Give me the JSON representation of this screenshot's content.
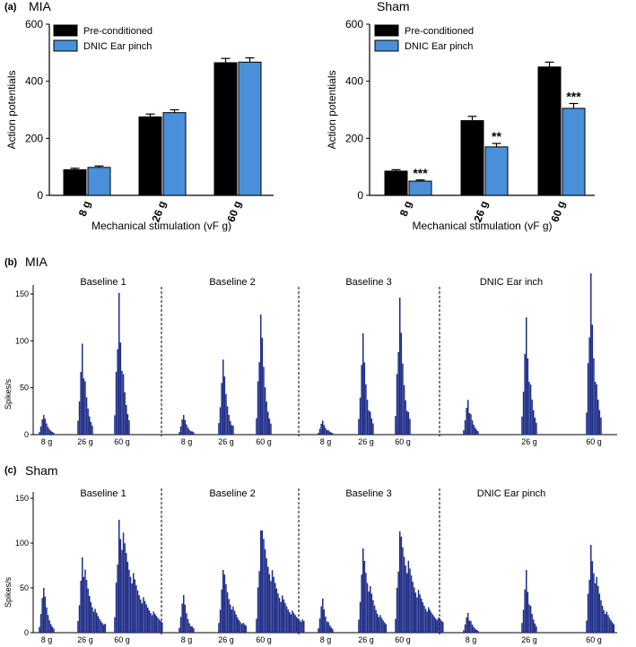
{
  "panel_labels": [
    "(a)",
    "(b)",
    "(c)"
  ],
  "colors": {
    "pre": "#000000",
    "dnic": "#4a8fd9",
    "trace": "#1f2d87",
    "axis": "#000000"
  },
  "chart_data": [
    {
      "panel": "(a)",
      "type": "bar",
      "title": "MIA",
      "xlabel": "Mechanical stimulation (vF g)",
      "ylabel": "Action potentials",
      "ylim": [
        0,
        600
      ],
      "yticks": [
        "0",
        "200",
        "400",
        "600"
      ],
      "categories": [
        "8 g",
        "26 g",
        "60 g"
      ],
      "legend_position": "top-left",
      "series": [
        {
          "name": "Pre-conditioned",
          "values": [
            90,
            275,
            465
          ],
          "errors": [
            5,
            10,
            15
          ]
        },
        {
          "name": "DNIC Ear pinch",
          "values": [
            98,
            290,
            467
          ],
          "errors": [
            5,
            10,
            15
          ]
        }
      ],
      "annotations": []
    },
    {
      "panel": "(a)",
      "type": "bar",
      "title": "Sham",
      "xlabel": "Mechanical stimulation (vF g)",
      "ylabel": "Action potentials",
      "ylim": [
        0,
        600
      ],
      "yticks": [
        "0",
        "200",
        "400",
        "600"
      ],
      "categories": [
        "8 g",
        "26 g",
        "60 g"
      ],
      "legend_position": "top-left",
      "series": [
        {
          "name": "Pre-conditioned",
          "values": [
            85,
            262,
            450
          ],
          "errors": [
            5,
            15,
            17
          ]
        },
        {
          "name": "DNIC Ear pinch",
          "values": [
            50,
            170,
            305
          ],
          "errors": [
            4,
            12,
            17
          ]
        }
      ],
      "annotations": [
        {
          "category": "8 g",
          "series": "DNIC Ear pinch",
          "text": "***"
        },
        {
          "category": "26 g",
          "series": "DNIC Ear pinch",
          "text": "**"
        },
        {
          "category": "60 g",
          "series": "DNIC Ear pinch",
          "text": "***"
        }
      ]
    },
    {
      "panel": "(b)",
      "type": "histogram",
      "title": "MIA",
      "ylabel": "Spikes/s",
      "ylim": [
        0,
        150
      ],
      "yticks": [
        "0",
        "50",
        "100",
        "150"
      ],
      "segments": [
        {
          "label": "Baseline 1",
          "stimuli": [
            {
              "label": "8 g",
              "peak": 21,
              "decay": "short"
            },
            {
              "label": "26 g",
              "peak": 97,
              "decay": "short"
            },
            {
              "label": "60 g",
              "peak": 151,
              "decay": "short"
            }
          ]
        },
        {
          "label": "Baseline 2",
          "stimuli": [
            {
              "label": "8 g",
              "peak": 21,
              "decay": "short"
            },
            {
              "label": "26 g",
              "peak": 80,
              "decay": "short"
            },
            {
              "label": "60 g",
              "peak": 128,
              "decay": "short"
            }
          ]
        },
        {
          "label": "Baseline 3",
          "stimuli": [
            {
              "label": "8 g",
              "peak": 15,
              "decay": "short"
            },
            {
              "label": "26 g",
              "peak": 108,
              "decay": "short"
            },
            {
              "label": "60 g",
              "peak": 146,
              "decay": "short"
            }
          ]
        },
        {
          "label": "DNIC Ear    inch",
          "stimuli": [
            {
              "label": "",
              "peak": 37,
              "decay": "short"
            },
            {
              "label": "26 g",
              "peak": 125,
              "decay": "short"
            },
            {
              "label": "60 g",
              "peak": 172,
              "decay": "short"
            }
          ]
        }
      ]
    },
    {
      "panel": "(c)",
      "type": "histogram",
      "title": "Sham",
      "ylabel": "Spikes/s",
      "ylim": [
        0,
        150
      ],
      "yticks": [
        "0",
        "50",
        "100",
        "150"
      ],
      "segments": [
        {
          "label": "Baseline 1",
          "stimuli": [
            {
              "label": "8 g",
              "peak": 50,
              "decay": "short"
            },
            {
              "label": "26 g",
              "peak": 84,
              "decay": "medium"
            },
            {
              "label": "60 g",
              "peak": 126,
              "decay": "long"
            }
          ]
        },
        {
          "label": "Baseline 2",
          "stimuli": [
            {
              "label": "8 g",
              "peak": 42,
              "decay": "short"
            },
            {
              "label": "26 g",
              "peak": 70,
              "decay": "medium"
            },
            {
              "label": "60 g",
              "peak": 114,
              "decay": "long"
            }
          ]
        },
        {
          "label": "Baseline 3",
          "stimuli": [
            {
              "label": "8 g",
              "peak": 38,
              "decay": "short"
            },
            {
              "label": "26 g",
              "peak": 94,
              "decay": "medium"
            },
            {
              "label": "60 g",
              "peak": 113,
              "decay": "long"
            }
          ]
        },
        {
          "label": "DNIC Ear pinch",
          "stimuli": [
            {
              "label": "8 g",
              "peak": 22,
              "decay": "short"
            },
            {
              "label": "26 g",
              "peak": 70,
              "decay": "short"
            },
            {
              "label": "60 g",
              "peak": 98,
              "decay": "medium"
            }
          ]
        }
      ]
    }
  ]
}
